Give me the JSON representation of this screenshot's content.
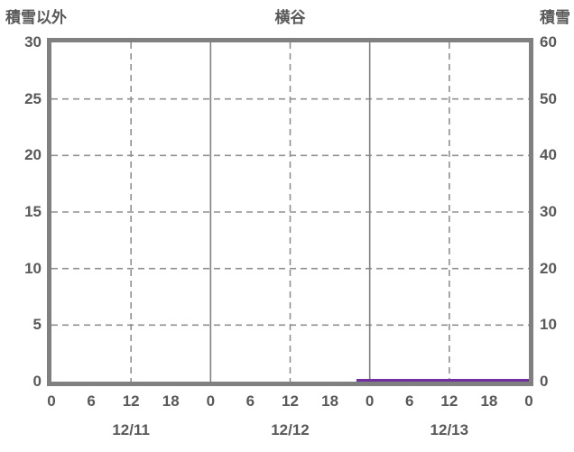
{
  "header": {
    "left_axis_title": "積雪以外",
    "chart_title": "横谷",
    "right_axis_title": "積雪"
  },
  "colors": {
    "frame": "#808080",
    "grid_dashed": "#909090",
    "grid_solid": "#808080",
    "text": "#595959",
    "background": "#ffffff",
    "series_snow_depth": "#7030A0"
  },
  "chart_data": {
    "type": "line",
    "title": "横谷",
    "left_axis": {
      "label": "積雪以外",
      "min": 0,
      "max": 30,
      "tick_step": 5,
      "ticks": [
        "0",
        "5",
        "10",
        "15",
        "20",
        "25",
        "30"
      ]
    },
    "right_axis": {
      "label": "積雪",
      "min": 0,
      "max": 60,
      "tick_step": 10,
      "ticks": [
        "0",
        "10",
        "20",
        "30",
        "40",
        "50",
        "60"
      ]
    },
    "x_axis": {
      "total_hours": 72,
      "hour_tick_step": 6,
      "hour_tick_labels": [
        "0",
        "6",
        "12",
        "18",
        "0",
        "6",
        "12",
        "18",
        "0",
        "6",
        "12",
        "18",
        "0"
      ],
      "date_labels": [
        "12/11",
        "12/12",
        "12/13"
      ],
      "solid_gridlines_hours": [
        24,
        48
      ],
      "dashed_gridlines_hours": [
        12,
        36,
        60
      ]
    },
    "horizontal_gridlines_left_values": [
      5,
      10,
      15,
      20,
      25
    ],
    "grid": true,
    "legend_position": "none",
    "plot_area_empty_except_series": true,
    "series": [
      {
        "name": "積雪",
        "axis": "right",
        "color": "#7030A0",
        "description": "flat line at value 0 from ~22:00 on 12/12 to 24:00 on 12/13",
        "start_hour": 46,
        "end_hour": 72,
        "value": 0
      }
    ]
  }
}
